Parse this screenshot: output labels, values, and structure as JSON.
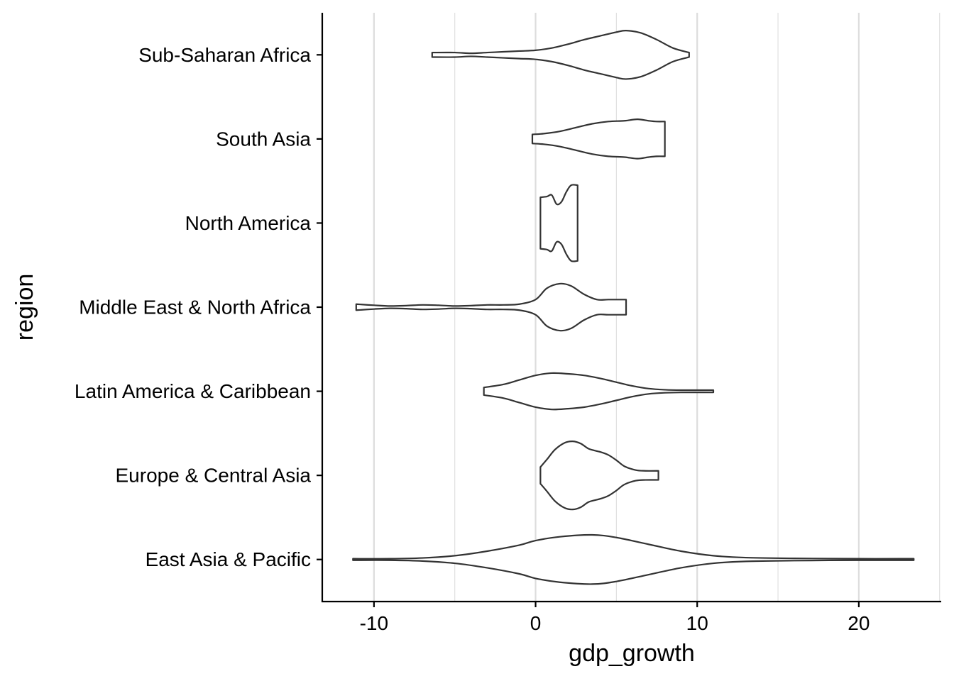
{
  "chart_data": {
    "type": "violin",
    "orientation": "horizontal",
    "title": "",
    "xlabel": "gdp_growth",
    "ylabel": "region",
    "xlim": [
      -13.2,
      25.1
    ],
    "x_ticks": [
      "-10",
      "0",
      "10",
      "20"
    ],
    "grid": "vertical major and minor",
    "line_color": "#333333",
    "grid_color": "#dddddd",
    "categories": [
      "East Asia & Pacific",
      "Europe & Central Asia",
      "Latin America & Caribbean",
      "Middle East & North Africa",
      "North America",
      "South Asia",
      "Sub-Saharan Africa"
    ],
    "series": [
      {
        "category": "East Asia & Pacific",
        "min": -11.3,
        "max": 23.4,
        "density": [
          [
            -11.3,
            0.02
          ],
          [
            -9,
            0.02
          ],
          [
            -7,
            0.04
          ],
          [
            -5,
            0.1
          ],
          [
            -3,
            0.22
          ],
          [
            -1,
            0.38
          ],
          [
            0,
            0.5
          ],
          [
            1.5,
            0.6
          ],
          [
            3.5,
            0.65
          ],
          [
            5,
            0.58
          ],
          [
            7,
            0.4
          ],
          [
            9,
            0.22
          ],
          [
            11,
            0.1
          ],
          [
            13,
            0.05
          ],
          [
            16,
            0.03
          ],
          [
            20,
            0.02
          ],
          [
            23.4,
            0.02
          ]
        ]
      },
      {
        "category": "Europe & Central Asia",
        "min": 0.3,
        "max": 7.6,
        "density": [
          [
            0.3,
            0.22
          ],
          [
            0.7,
            0.42
          ],
          [
            1.2,
            0.68
          ],
          [
            1.8,
            0.86
          ],
          [
            2.3,
            0.9
          ],
          [
            2.8,
            0.84
          ],
          [
            3.3,
            0.7
          ],
          [
            4,
            0.62
          ],
          [
            4.5,
            0.54
          ],
          [
            5,
            0.4
          ],
          [
            5.5,
            0.24
          ],
          [
            6.2,
            0.14
          ],
          [
            6.8,
            0.12
          ],
          [
            7.6,
            0.12
          ]
        ]
      },
      {
        "category": "Latin America & Caribbean",
        "min": -3.2,
        "max": 11,
        "density": [
          [
            -3.2,
            0.1
          ],
          [
            -2,
            0.18
          ],
          [
            -1,
            0.3
          ],
          [
            0,
            0.42
          ],
          [
            1,
            0.48
          ],
          [
            2,
            0.46
          ],
          [
            3,
            0.42
          ],
          [
            4,
            0.34
          ],
          [
            5,
            0.24
          ],
          [
            6,
            0.14
          ],
          [
            7,
            0.07
          ],
          [
            8,
            0.04
          ],
          [
            9,
            0.03
          ],
          [
            11,
            0.03
          ]
        ]
      },
      {
        "category": "Middle East & North Africa",
        "min": -11.1,
        "max": 5.6,
        "density": [
          [
            -11.1,
            0.08
          ],
          [
            -10,
            0.05
          ],
          [
            -9,
            0.03
          ],
          [
            -8,
            0.04
          ],
          [
            -7,
            0.06
          ],
          [
            -6,
            0.05
          ],
          [
            -5,
            0.03
          ],
          [
            -4,
            0.04
          ],
          [
            -3,
            0.06
          ],
          [
            -2,
            0.06
          ],
          [
            -1,
            0.08
          ],
          [
            0,
            0.2
          ],
          [
            0.7,
            0.5
          ],
          [
            1.5,
            0.62
          ],
          [
            2.2,
            0.56
          ],
          [
            3,
            0.34
          ],
          [
            3.8,
            0.2
          ],
          [
            4.5,
            0.2
          ],
          [
            5.6,
            0.2
          ]
        ]
      },
      {
        "category": "North America",
        "min": 0.3,
        "max": 2.6,
        "density": [
          [
            0.3,
            0.68
          ],
          [
            0.7,
            0.7
          ],
          [
            1,
            0.74
          ],
          [
            1.3,
            0.5
          ],
          [
            1.6,
            0.56
          ],
          [
            1.9,
            0.82
          ],
          [
            2.2,
            1
          ],
          [
            2.6,
            1
          ]
        ]
      },
      {
        "category": "South Asia",
        "min": -0.2,
        "max": 8,
        "density": [
          [
            -0.2,
            0.12
          ],
          [
            0.5,
            0.14
          ],
          [
            1.5,
            0.2
          ],
          [
            2.5,
            0.3
          ],
          [
            3.5,
            0.4
          ],
          [
            4.5,
            0.46
          ],
          [
            5.5,
            0.48
          ],
          [
            6.3,
            0.52
          ],
          [
            7,
            0.48
          ],
          [
            7.5,
            0.46
          ],
          [
            8,
            0.46
          ]
        ]
      },
      {
        "category": "Sub-Saharan Africa",
        "min": -6.4,
        "max": 9.5,
        "density": [
          [
            -6.4,
            0.06
          ],
          [
            -5,
            0.06
          ],
          [
            -4,
            0.04
          ],
          [
            -3,
            0.06
          ],
          [
            -2,
            0.08
          ],
          [
            -1,
            0.1
          ],
          [
            0,
            0.12
          ],
          [
            1,
            0.18
          ],
          [
            2,
            0.28
          ],
          [
            3,
            0.4
          ],
          [
            4,
            0.5
          ],
          [
            5,
            0.6
          ],
          [
            5.6,
            0.64
          ],
          [
            6.5,
            0.58
          ],
          [
            7.5,
            0.4
          ],
          [
            8.5,
            0.18
          ],
          [
            9.5,
            0.06
          ]
        ]
      }
    ]
  }
}
